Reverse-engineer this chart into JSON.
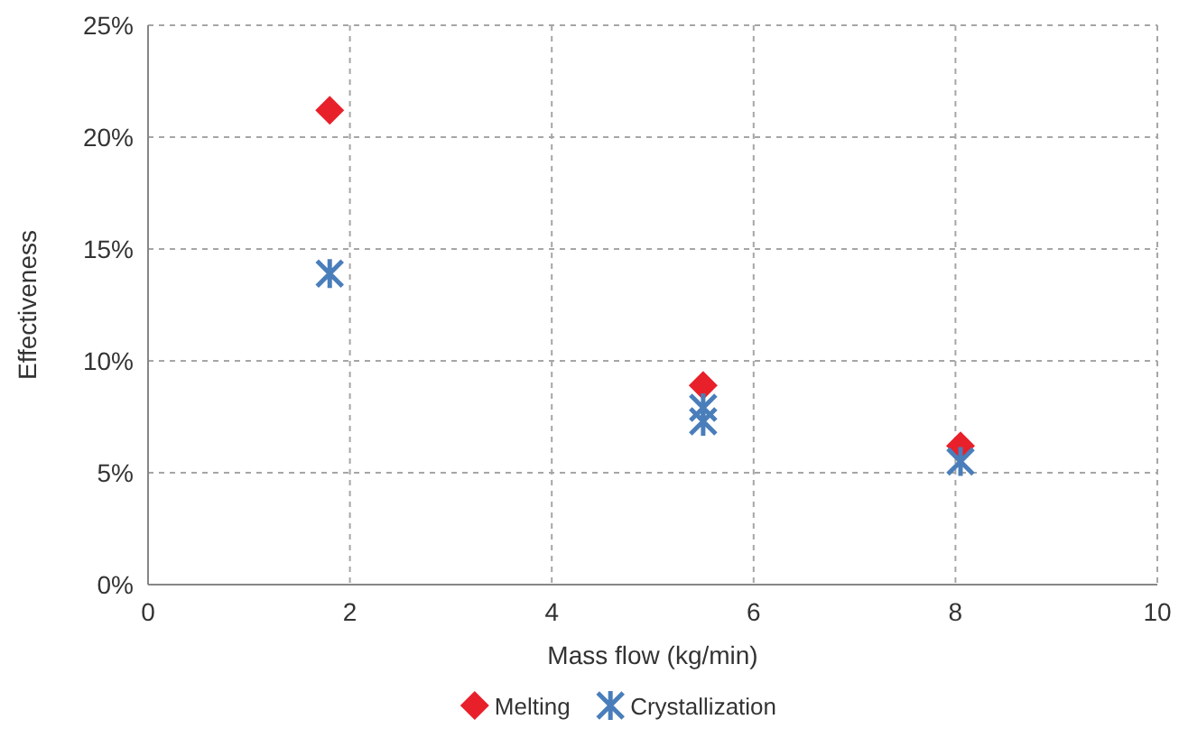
{
  "chart_data": {
    "type": "scatter",
    "xlabel": "Mass flow (kg/min)",
    "ylabel": "Effectiveness",
    "xlim": [
      0,
      10
    ],
    "xticks": [
      0,
      2,
      4,
      6,
      8,
      10
    ],
    "ylim": [
      0,
      25
    ],
    "yticks": [
      {
        "value": 0,
        "label": "0%"
      },
      {
        "value": 5,
        "label": "5%"
      },
      {
        "value": 10,
        "label": "10%"
      },
      {
        "value": 15,
        "label": "15%"
      },
      {
        "value": 20,
        "label": "20%"
      },
      {
        "value": 25,
        "label": "25%"
      }
    ],
    "grid": true,
    "legend": "bottom",
    "series": [
      {
        "name": "Melting",
        "color": "#e8202a",
        "marker": "diamond",
        "x": [
          1.8,
          5.5,
          8.05
        ],
        "values": [
          21.2,
          8.9,
          6.2
        ]
      },
      {
        "name": "Crystallization",
        "color": "#4a7ebb",
        "marker": "cross",
        "x": [
          1.8,
          5.5,
          5.5,
          8.05
        ],
        "values": [
          13.9,
          7.9,
          7.3,
          5.5
        ]
      }
    ]
  }
}
